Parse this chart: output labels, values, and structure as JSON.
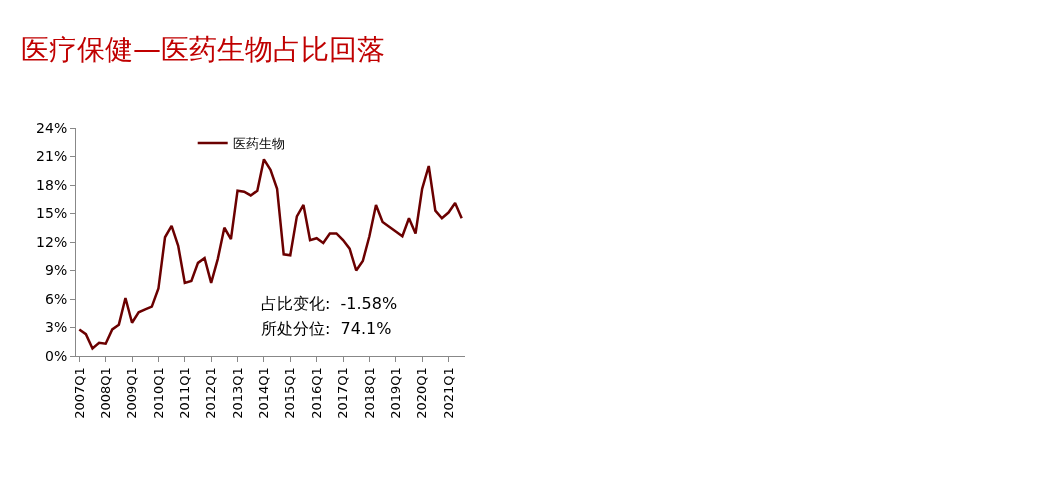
{
  "chart_data": {
    "type": "line",
    "title": "医疗保健—医药生物占比回落",
    "categories": [
      "2007Q1",
      null,
      null,
      null,
      "2008Q1",
      null,
      null,
      null,
      "2009Q1",
      null,
      null,
      null,
      "2010Q1",
      null,
      null,
      null,
      "2011Q1",
      null,
      null,
      null,
      "2012Q1",
      null,
      null,
      null,
      "2013Q1",
      null,
      null,
      null,
      "2014Q1",
      null,
      null,
      null,
      "2015Q1",
      null,
      null,
      null,
      "2016Q1",
      null,
      null,
      null,
      "2017Q1",
      null,
      null,
      null,
      "2018Q1",
      null,
      null,
      null,
      "2019Q1",
      null,
      null,
      null,
      "2020Q1",
      null,
      null,
      null,
      "2021Q1",
      null,
      null
    ],
    "series": [
      {
        "name": "医药生物",
        "color": "#6b0000",
        "values": [
          2.8,
          2.3,
          0.8,
          1.4,
          1.3,
          2.8,
          3.3,
          6.1,
          3.5,
          4.6,
          4.9,
          5.2,
          7.1,
          12.5,
          13.7,
          11.6,
          7.7,
          7.9,
          9.8,
          10.3,
          7.7,
          10.2,
          13.5,
          12.3,
          17.4,
          17.3,
          16.9,
          17.4,
          20.7,
          19.6,
          17.6,
          10.7,
          10.6,
          14.7,
          15.9,
          12.2,
          12.4,
          11.9,
          12.9,
          12.9,
          12.2,
          11.3,
          9.0,
          10.0,
          12.6,
          15.9,
          14.1,
          13.6,
          13.1,
          12.6,
          14.5,
          12.9,
          17.6,
          20.0,
          15.3,
          14.5,
          15.1,
          16.1,
          14.5
        ]
      }
    ],
    "ylim": [
      0,
      24
    ],
    "yticks": [
      {
        "value": 0,
        "label": "0%"
      },
      {
        "value": 3,
        "label": "3%"
      },
      {
        "value": 6,
        "label": "6%"
      },
      {
        "value": 9,
        "label": "9%"
      },
      {
        "value": 12,
        "label": "12%"
      },
      {
        "value": 15,
        "label": "15%"
      },
      {
        "value": 18,
        "label": "18%"
      },
      {
        "value": 21,
        "label": "21%"
      },
      {
        "value": 24,
        "label": "24%"
      }
    ],
    "annotations": [
      "占比变化:  -1.58%",
      "所处分位:  74.1%"
    ],
    "legend": "top",
    "marker": "none",
    "line_style": "solid"
  }
}
